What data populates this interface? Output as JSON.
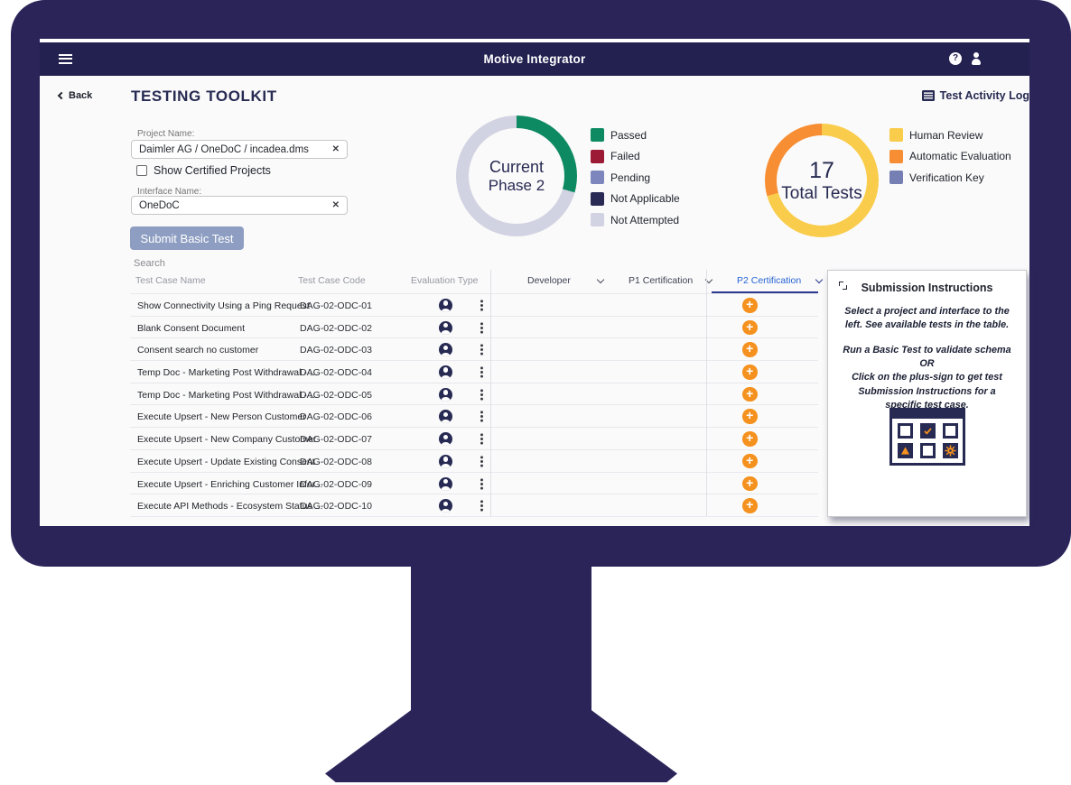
{
  "app": {
    "title": "Motive Integrator",
    "back_label": "Back",
    "page_title": "TESTING TOOLKIT",
    "activity_log_label": "Test Activity Log"
  },
  "form": {
    "project_label": "Project Name:",
    "project_value": "Daimler AG / OneDoC / incadea.dms",
    "show_certified_label": "Show Certified Projects",
    "interface_label": "Interface Name:",
    "interface_value": "OneDoC",
    "submit_label": "Submit Basic Test",
    "search_label": "Search"
  },
  "chart_data": [
    {
      "type": "pie",
      "variant": "donut",
      "title": "Current Phase 2",
      "center": {
        "line1": "Current",
        "line2": "Phase 2"
      },
      "total": 17,
      "segments": [
        {
          "label": "Passed",
          "value": 5,
          "color": "#0E8A62"
        },
        {
          "label": "Failed",
          "value": 0,
          "color": "#9C1A35"
        },
        {
          "label": "Pending",
          "value": 0,
          "color": "#7D87BE"
        },
        {
          "label": "Not Applicable",
          "value": 0,
          "color": "#2A2B55"
        },
        {
          "label": "Not Attempted",
          "value": 12,
          "color": "#D2D3E2"
        }
      ],
      "legend_position": "right"
    },
    {
      "type": "pie",
      "variant": "donut",
      "title": "17 Total Tests",
      "center": {
        "line1": "17",
        "line2": "Total Tests"
      },
      "total": 17,
      "segments": [
        {
          "label": "Human Review",
          "value": 12,
          "color": "#F9CC4B"
        },
        {
          "label": "Automatic Evaluation",
          "value": 5,
          "color": "#F78E33"
        },
        {
          "label": "Verification Key",
          "value": 0,
          "color": "#767FB3"
        }
      ],
      "legend_position": "right"
    }
  ],
  "table": {
    "headers": [
      "Test Case Name",
      "Test Case Code",
      "Evaluation Type",
      "Developer",
      "P1 Certification",
      "P2 Certification"
    ],
    "active_column": "P2 Certification",
    "rows": [
      {
        "name": "Show Connectivity Using a Ping Request",
        "code": "DAG-02-ODC-01"
      },
      {
        "name": "Blank Consent Document",
        "code": "DAG-02-ODC-02"
      },
      {
        "name": "Consent search no customer",
        "code": "DAG-02-ODC-03"
      },
      {
        "name": "Temp Doc - Marketing Post Withdrawal - ...",
        "code": "DAG-02-ODC-04"
      },
      {
        "name": "Temp Doc - Marketing Post Withdrawal - ...",
        "code": "DAG-02-ODC-05"
      },
      {
        "name": "Execute Upsert - New Person Customer",
        "code": "DAG-02-ODC-06"
      },
      {
        "name": "Execute Upsert - New Company Customer",
        "code": "DAG-02-ODC-07"
      },
      {
        "name": "Execute Upsert - Update Existing Consent",
        "code": "DAG-02-ODC-08"
      },
      {
        "name": "Execute Upsert - Enriching Customer Infor...",
        "code": "DAG-02-ODC-09"
      },
      {
        "name": "Execute API Methods - Ecosystem Status ...",
        "code": "DAG-02-ODC-10"
      }
    ]
  },
  "panel": {
    "title": "Submission Instructions",
    "paragraphs": [
      "Select a project and interface to the left. See available tests in the table.",
      "Run a Basic Test to validate schema",
      "OR",
      "Click on the plus-sign to get test Submission Instructions for a specific test case."
    ]
  },
  "icons": {
    "menu": "hamburger",
    "help": "question-circle",
    "user": "person",
    "back": "chevron-left",
    "activity_log": "list",
    "clear": "✕",
    "dropdown": "chevron-down",
    "evaluation": "person-circle",
    "row_menu": "kebab-dots",
    "add": "+",
    "expand": "corner-brackets",
    "illustration_cells": [
      "empty",
      "check",
      "empty",
      "warning-triangle",
      "empty",
      "gear"
    ]
  },
  "colors": {
    "monitor_navy": "#2A2459",
    "app_bar_navy": "#232150",
    "accent_navy": "#272A52",
    "plus_orange": "#F5911E",
    "active_column_blue": "#2563D4",
    "submit_button_gray_blue": "#8E9EC2"
  }
}
